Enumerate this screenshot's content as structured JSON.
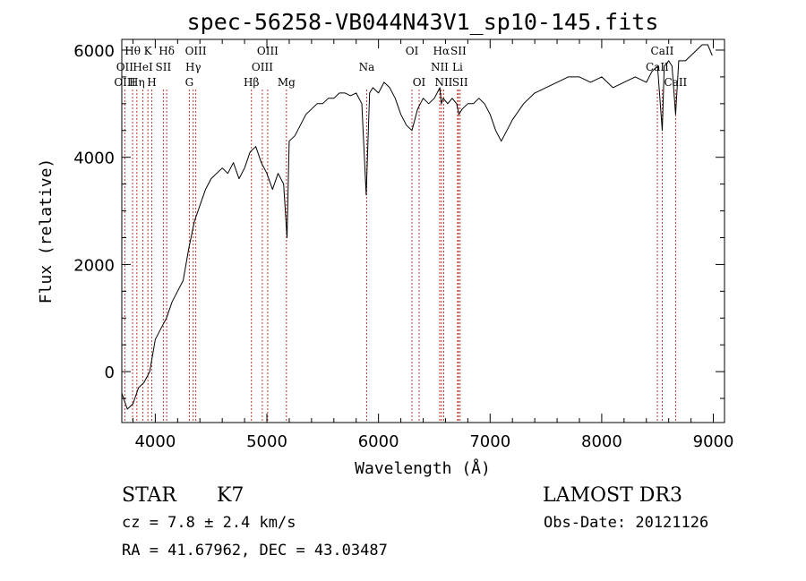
{
  "chart_data": {
    "type": "line",
    "title": "spec-56258-VB044N43V1_sp10-145.fits",
    "xlabel": "Wavelength (Å)",
    "ylabel": "Flux (relative)",
    "xlim": [
      3700,
      9100
    ],
    "ylim": [
      -950,
      6200
    ],
    "xticks": [
      4000,
      5000,
      6000,
      7000,
      8000,
      9000
    ],
    "yticks": [
      0,
      2000,
      4000,
      6000
    ],
    "grid": false,
    "series": [
      {
        "x": [
          3700,
          3750,
          3800,
          3850,
          3900,
          3950,
          4000,
          4050,
          4100,
          4150,
          4200,
          4250,
          4300,
          4350,
          4400,
          4450,
          4500,
          4550,
          4600,
          4650,
          4700,
          4750,
          4800,
          4850,
          4900,
          4950,
          5000,
          5050,
          5100,
          5150,
          5180,
          5200,
          5250,
          5300,
          5350,
          5400,
          5450,
          5500,
          5550,
          5600,
          5650,
          5700,
          5750,
          5800,
          5850,
          5890,
          5920,
          5950,
          6000,
          6050,
          6100,
          6150,
          6200,
          6250,
          6300,
          6350,
          6400,
          6450,
          6500,
          6550,
          6563,
          6580,
          6620,
          6660,
          6700,
          6720,
          6750,
          6800,
          6850,
          6900,
          6950,
          7000,
          7050,
          7100,
          7150,
          7200,
          7300,
          7400,
          7500,
          7600,
          7700,
          7800,
          7900,
          8000,
          8100,
          8200,
          8300,
          8400,
          8450,
          8500,
          8542,
          8560,
          8600,
          8630,
          8662,
          8690,
          8750,
          8800,
          8850,
          8900,
          8950,
          8990
        ],
        "y": [
          -400,
          -700,
          -600,
          -300,
          -200,
          0,
          600,
          800,
          1000,
          1300,
          1500,
          1700,
          2300,
          2800,
          3100,
          3400,
          3600,
          3700,
          3800,
          3700,
          3900,
          3600,
          3800,
          4100,
          4200,
          3900,
          3700,
          3400,
          3700,
          3500,
          2500,
          4300,
          4400,
          4600,
          4800,
          4900,
          5000,
          5000,
          5100,
          5100,
          5200,
          5200,
          5150,
          5200,
          5000,
          3300,
          5200,
          5300,
          5200,
          5400,
          5300,
          5100,
          4800,
          4600,
          4500,
          4900,
          5100,
          5000,
          5100,
          5300,
          5000,
          5100,
          5000,
          5100,
          5000,
          4800,
          4900,
          5000,
          5000,
          5100,
          5000,
          4800,
          4500,
          4300,
          4500,
          4700,
          5000,
          5200,
          5300,
          5400,
          5500,
          5500,
          5400,
          5500,
          5300,
          5400,
          5500,
          5400,
          5600,
          5700,
          4500,
          5700,
          5800,
          5700,
          4800,
          5800,
          5800,
          5900,
          6000,
          6100,
          6100,
          5900
        ]
      }
    ],
    "line_markers": [
      {
        "label": "Hθ",
        "x": 3797,
        "row": 0
      },
      {
        "label": "OII",
        "x": 3727,
        "row": 1
      },
      {
        "label": "OIII",
        "x": 3727,
        "row": 2
      },
      {
        "label": "K",
        "x": 3934,
        "row": 0
      },
      {
        "label": "HeI",
        "x": 3889,
        "row": 1
      },
      {
        "label": "Hη",
        "x": 3835,
        "row": 2
      },
      {
        "label": "Hδ",
        "x": 4102,
        "row": 0
      },
      {
        "label": "SII",
        "x": 4072,
        "row": 1
      },
      {
        "label": "H",
        "x": 3969,
        "row": 2
      },
      {
        "label": "OIII",
        "x": 4363,
        "row": 0
      },
      {
        "label": "Hγ",
        "x": 4340,
        "row": 1
      },
      {
        "label": "G",
        "x": 4305,
        "row": 2
      },
      {
        "label": "OIII",
        "x": 5007,
        "row": 0
      },
      {
        "label": "OIII",
        "x": 4959,
        "row": 1
      },
      {
        "label": "Hβ",
        "x": 4861,
        "row": 2
      },
      {
        "label": "Mg",
        "x": 5175,
        "row": 2
      },
      {
        "label": "Na",
        "x": 5894,
        "row": 1
      },
      {
        "label": "OI",
        "x": 6300,
        "row": 0
      },
      {
        "label": "OI",
        "x": 6364,
        "row": 2
      },
      {
        "label": "Hα",
        "x": 6563,
        "row": 0
      },
      {
        "label": "SII",
        "x": 6716,
        "row": 0
      },
      {
        "label": "NII",
        "x": 6548,
        "row": 1
      },
      {
        "label": "Li",
        "x": 6708,
        "row": 1
      },
      {
        "label": "NII",
        "x": 6584,
        "row": 2
      },
      {
        "label": "SII",
        "x": 6731,
        "row": 2
      },
      {
        "label": "CaII",
        "x": 8542,
        "row": 0
      },
      {
        "label": "CaII",
        "x": 8498,
        "row": 1
      },
      {
        "label": "CaII",
        "x": 8662,
        "row": 2
      }
    ]
  },
  "info": {
    "object_type": "STAR",
    "subclass": "K7",
    "survey": "LAMOST DR3",
    "cz": "cz = 7.8 ± 2.4 km/s",
    "obs_date": "Obs-Date: 20121126",
    "coords": "RA =  41.67962, DEC =  43.03487"
  }
}
